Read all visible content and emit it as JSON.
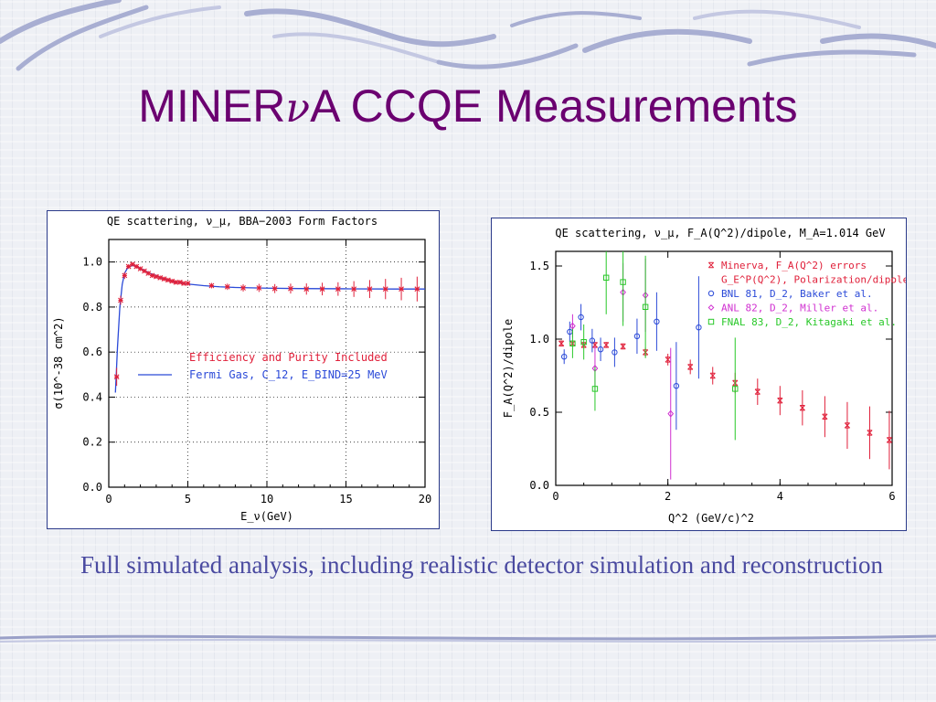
{
  "slide": {
    "title_prefix": "MINER",
    "title_nu": "ν",
    "title_suffix": "A CCQE Measurements",
    "caption": "Full simulated analysis, including realistic detector simulation and reconstruction"
  },
  "colors": {
    "title": "#6b0070",
    "caption": "#4a4aa0",
    "swoosh": "#9aa0c8"
  },
  "chart_data": [
    {
      "type": "line",
      "title": "QE scattering, ν_μ, BBA−2003 Form Factors",
      "xlabel": "E_ν(GeV)",
      "ylabel": "σ(10^-38 cm^2)",
      "xlim": [
        0,
        20
      ],
      "ylim": [
        0,
        1.1
      ],
      "xticks": [
        0,
        5,
        10,
        15,
        20
      ],
      "yticks": [
        0.0,
        0.2,
        0.4,
        0.6,
        0.8,
        1.0
      ],
      "grid": true,
      "legend": [
        "Efficiency and Purity Included",
        "Fermi Gas, C_12, E_BIND=25 MeV"
      ],
      "series": [
        {
          "name": "Efficiency and Purity Included",
          "style": "points",
          "color": "#e0203a",
          "x": [
            0.5,
            0.75,
            1.0,
            1.25,
            1.5,
            1.75,
            2.0,
            2.25,
            2.5,
            2.75,
            3.0,
            3.25,
            3.5,
            3.75,
            4.0,
            4.25,
            4.5,
            4.75,
            5.0,
            6.5,
            7.5,
            8.5,
            9.5,
            10.5,
            11.5,
            12.5,
            13.5,
            14.5,
            15.5,
            16.5,
            17.5,
            18.5,
            19.5
          ],
          "y": [
            0.49,
            0.83,
            0.94,
            0.98,
            0.99,
            0.98,
            0.97,
            0.96,
            0.95,
            0.94,
            0.935,
            0.93,
            0.925,
            0.92,
            0.915,
            0.91,
            0.91,
            0.905,
            0.905,
            0.895,
            0.89,
            0.885,
            0.885,
            0.882,
            0.882,
            0.88,
            0.88,
            0.88,
            0.88,
            0.88,
            0.88,
            0.88,
            0.88
          ],
          "yerr": [
            0.04,
            0.02,
            0.015,
            0.01,
            0.01,
            0.01,
            0.01,
            0.01,
            0.01,
            0.01,
            0.01,
            0.01,
            0.01,
            0.01,
            0.01,
            0.01,
            0.01,
            0.01,
            0.01,
            0.012,
            0.014,
            0.016,
            0.018,
            0.02,
            0.022,
            0.025,
            0.028,
            0.03,
            0.035,
            0.04,
            0.045,
            0.05,
            0.055
          ]
        },
        {
          "name": "Fermi Gas, C_12, E_BIND=25 MeV",
          "style": "line",
          "color": "#2b4ad8",
          "x": [
            0.42,
            0.55,
            0.7,
            0.85,
            1.0,
            1.2,
            1.5,
            1.8,
            2.2,
            2.6,
            3.0,
            3.5,
            4.0,
            4.5,
            5.0,
            6.0,
            7.0,
            8.0,
            10.0,
            12.0,
            15.0,
            18.0,
            20.0
          ],
          "y": [
            0.42,
            0.62,
            0.8,
            0.9,
            0.95,
            0.975,
            0.985,
            0.98,
            0.965,
            0.95,
            0.94,
            0.925,
            0.915,
            0.908,
            0.902,
            0.895,
            0.89,
            0.887,
            0.884,
            0.882,
            0.881,
            0.88,
            0.88
          ]
        }
      ]
    },
    {
      "type": "scatter",
      "title": "QE scattering, ν_μ, F_A(Q^2)/dipole, M_A=1.014 GeV",
      "xlabel": "Q^2 (GeV/c)^2",
      "ylabel": "F_A(Q^2)/dipole",
      "xlim": [
        0,
        6
      ],
      "ylim": [
        0,
        1.6
      ],
      "xticks": [
        0,
        2,
        4,
        6
      ],
      "yticks": [
        0.0,
        0.5,
        1.0,
        1.5
      ],
      "grid": false,
      "legend": [
        "Minerva, F_A(Q^2) errors",
        "G_E^P(Q^2), Polarization/dipole",
        "BNL 81, D_2, Baker et al.",
        "ANL 82, D_2, Miller et al.",
        "FNAL 83, D_2, Kitagaki et al."
      ],
      "series": [
        {
          "name": "Minerva, F_A(Q^2) errors",
          "marker": "x",
          "color": "#e0203a",
          "x": [
            0.1,
            0.3,
            0.5,
            0.7,
            0.9,
            1.2,
            1.6,
            2.0,
            2.4,
            2.8,
            3.2,
            3.6,
            4.0,
            4.4,
            4.8,
            5.2,
            5.6,
            5.95
          ],
          "y": [
            0.97,
            0.97,
            0.96,
            0.96,
            0.96,
            0.95,
            0.91,
            0.86,
            0.81,
            0.75,
            0.7,
            0.64,
            0.58,
            0.53,
            0.47,
            0.41,
            0.36,
            0.31
          ],
          "yerr": [
            0.02,
            0.02,
            0.02,
            0.02,
            0.02,
            0.02,
            0.03,
            0.04,
            0.05,
            0.06,
            0.07,
            0.09,
            0.1,
            0.12,
            0.14,
            0.16,
            0.18,
            0.2
          ]
        },
        {
          "name": "BNL 81, D_2, Baker et al.",
          "marker": "circle",
          "color": "#2b4ad8",
          "x": [
            0.15,
            0.25,
            0.45,
            0.65,
            0.8,
            1.05,
            1.45,
            1.8,
            2.15,
            2.55
          ],
          "y": [
            0.88,
            1.05,
            1.15,
            0.99,
            0.93,
            0.91,
            1.02,
            1.12,
            0.68,
            1.08
          ],
          "yerr": [
            0.05,
            0.07,
            0.09,
            0.08,
            0.08,
            0.1,
            0.12,
            0.2,
            0.3,
            0.35
          ]
        },
        {
          "name": "ANL 82, D_2, Miller et al.",
          "marker": "diamond",
          "color": "#d030d0",
          "x": [
            0.3,
            0.7,
            1.2,
            1.6,
            2.05
          ],
          "y": [
            1.09,
            0.8,
            1.32,
            1.3,
            0.49
          ],
          "yerr": [
            0.08,
            0.15,
            0.2,
            0.25,
            0.45
          ]
        },
        {
          "name": "FNAL 83, D_2, Kitagaki et al.",
          "marker": "square",
          "color": "#28c828",
          "x": [
            0.3,
            0.5,
            0.7,
            0.9,
            1.2,
            1.6,
            3.2
          ],
          "y": [
            0.97,
            0.98,
            0.66,
            1.42,
            1.39,
            1.22,
            0.66
          ],
          "yerr": [
            0.1,
            0.12,
            0.15,
            0.25,
            0.3,
            0.35,
            0.35
          ]
        }
      ]
    }
  ],
  "plot1": {
    "title": "QE scattering, ν_μ, BBA−2003 Form Factors",
    "xlabel": "E_ν(GeV)",
    "ylabel": "σ(10^-38 cm^2)",
    "legend1": "Efficiency and Purity Included",
    "legend2": "Fermi Gas, C_12, E_BIND=25 MeV"
  },
  "plot2": {
    "title": "QE scattering, ν_μ, F_A(Q^2)/dipole, M_A=1.014 GeV",
    "xlabel": "Q^2 (GeV/c)^2",
    "ylabel": "F_A(Q^2)/dipole",
    "legend": [
      "Minerva, F_A(Q^2) errors",
      "G_E^P(Q^2), Polarization/dipole",
      "BNL 81, D_2, Baker et al.",
      "ANL 82, D_2, Miller et al.",
      "FNAL 83, D_2, Kitagaki et al."
    ]
  }
}
